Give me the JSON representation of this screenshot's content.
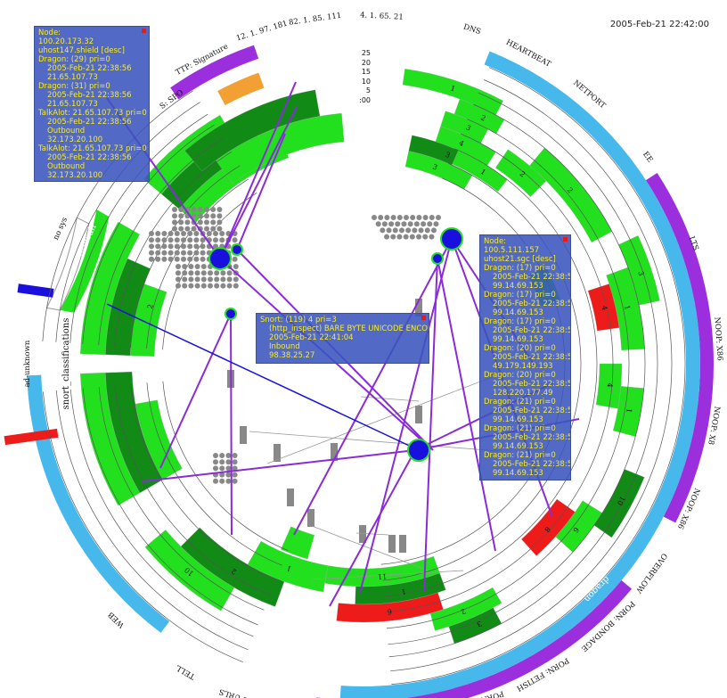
{
  "timestamp": "2005-Feb-21 22:42:00",
  "scale_labels": [
    "25",
    "20",
    "15",
    "10",
    "5",
    ":00"
  ],
  "segments": {
    "outer_labels": [
      {
        "text": "DNS"
      },
      {
        "text": "HEARTBEAT"
      },
      {
        "text": "NETPORT"
      },
      {
        "text": "EE"
      },
      {
        "text": "LTS"
      },
      {
        "text": "NOOP: X86"
      },
      {
        "text": "NOOP: X8"
      },
      {
        "text": "NOOP: X86"
      },
      {
        "text": "OVERFLOW"
      },
      {
        "text": "PORN: BONDAGE"
      },
      {
        "text": "PORN: FETISH"
      },
      {
        "text": "PORN: HARDCORE"
      },
      {
        "text": "PORN:"
      },
      {
        "text": "PORN:"
      },
      {
        "text": "PORN:"
      },
      {
        "text": "PORN:"
      },
      {
        "text": "PORN: SITE URLS"
      },
      {
        "text": "TELL"
      },
      {
        "text": "WEB"
      },
      {
        "text": "snort_classifications"
      },
      {
        "text": "ad-unknown"
      },
      {
        "text": "no sys"
      },
      {
        "text": "firewall"
      },
      {
        "text": "S: SPO"
      },
      {
        "text": "TTP: Signature"
      },
      {
        "text": "12. 1. 97. 181"
      },
      {
        "text": "82. 1. 85. 111"
      },
      {
        "text": "4. 1. 65. 21"
      },
      {
        "text": "dragon"
      }
    ]
  },
  "popups": [
    {
      "id": "node-popup-1",
      "lines": [
        {
          "t": "Node:",
          "i": false
        },
        {
          "t": "100.20.173.32",
          "i": false
        },
        {
          "t": "uhost147.shield [desc]",
          "i": false
        },
        {
          "t": "Dragon: (29) pri=0",
          "i": false
        },
        {
          "t": "2005-Feb-21 22:38:56",
          "i": true
        },
        {
          "t": "21.65.107.73",
          "i": true
        },
        {
          "t": "Dragon: (31) pri=0",
          "i": false
        },
        {
          "t": "2005-Feb-21 22:38:56",
          "i": true
        },
        {
          "t": "21.65.107.73",
          "i": true
        },
        {
          "t": "TalkAlot: 21.65.107.73  pri=0",
          "i": false
        },
        {
          "t": "2005-Feb-21 22:38:56",
          "i": true
        },
        {
          "t": "Outbound",
          "i": true
        },
        {
          "t": "32.173.20.100",
          "i": true
        },
        {
          "t": "TalkAlot: 21.65.107.73  pri=0",
          "i": false
        },
        {
          "t": "2005-Feb-21 22:38:56",
          "i": true
        },
        {
          "t": "Outbound",
          "i": true
        },
        {
          "t": "32.173.20.100",
          "i": true
        }
      ]
    },
    {
      "id": "snort-popup",
      "lines": [
        {
          "t": "Snort: (119) 4  pri=3",
          "i": false
        },
        {
          "t": "(http_inspect) BARE BYTE UNICODE ENCODING",
          "i": true
        },
        {
          "t": "2005-Feb-21 22:41:04",
          "i": true
        },
        {
          "t": "Inbound",
          "i": true
        },
        {
          "t": "98.38.25.27",
          "i": true
        }
      ]
    },
    {
      "id": "node-popup-2",
      "lines": [
        {
          "t": "Node:",
          "i": false
        },
        {
          "t": "100.5.111.157",
          "i": false
        },
        {
          "t": "uhost21.sgc [desc]",
          "i": false
        },
        {
          "t": "Dragon: (17) pri=0",
          "i": false
        },
        {
          "t": "2005-Feb-21 22:38:56",
          "i": true
        },
        {
          "t": "99.14.69.153",
          "i": true
        },
        {
          "t": "Dragon: (17) pri=0",
          "i": false
        },
        {
          "t": "2005-Feb-21 22:38:56",
          "i": true
        },
        {
          "t": "99.14.69.153",
          "i": true
        },
        {
          "t": "Dragon: (17) pri=0",
          "i": false
        },
        {
          "t": "2005-Feb-21 22:38:56",
          "i": true
        },
        {
          "t": "99.14.69.153",
          "i": true
        },
        {
          "t": "Dragon: (20) pri=0",
          "i": false
        },
        {
          "t": "2005-Feb-21 22:38:56",
          "i": true
        },
        {
          "t": "49.179.149.193",
          "i": true
        },
        {
          "t": "Dragon: (20) pri=0",
          "i": false
        },
        {
          "t": "2005-Feb-21 22:38:56",
          "i": true
        },
        {
          "t": "128.220.177.49",
          "i": true
        },
        {
          "t": "Dragon: (21) pri=0",
          "i": false
        },
        {
          "t": "2005-Feb-21 22:38:56",
          "i": true
        },
        {
          "t": "99.14.69.153",
          "i": true
        },
        {
          "t": "Dragon: (21) pri=0",
          "i": false
        },
        {
          "t": "2005-Feb-21 22:38:56",
          "i": true
        },
        {
          "t": "99.14.69.153",
          "i": true
        },
        {
          "t": "Dragon: (21) pri=0",
          "i": false
        },
        {
          "t": "2005-Feb-21 22:38:56",
          "i": true
        },
        {
          "t": "99.14.69.153",
          "i": true
        }
      ]
    }
  ],
  "cell_counts": [
    "1",
    "4",
    "3",
    "2",
    "1",
    "3",
    "3",
    "2",
    "2",
    "4",
    "1",
    "3",
    "4",
    "1",
    "8",
    "6",
    "10",
    "11",
    "1",
    "6",
    "2",
    "3",
    "1",
    "2",
    "10",
    "2"
  ],
  "colors": {
    "green": "#22e01e",
    "dark_green": "#118a16",
    "red": "#ee1b1b",
    "blue_ring": "#47b8ec",
    "purple_ring": "#9b2fde",
    "orange": "#f2a033",
    "link_purple": "#8a2bd9",
    "node_blue": "#1a10dd",
    "popup_bg": "#3a54be",
    "popup_text": "#f5ec2a"
  }
}
